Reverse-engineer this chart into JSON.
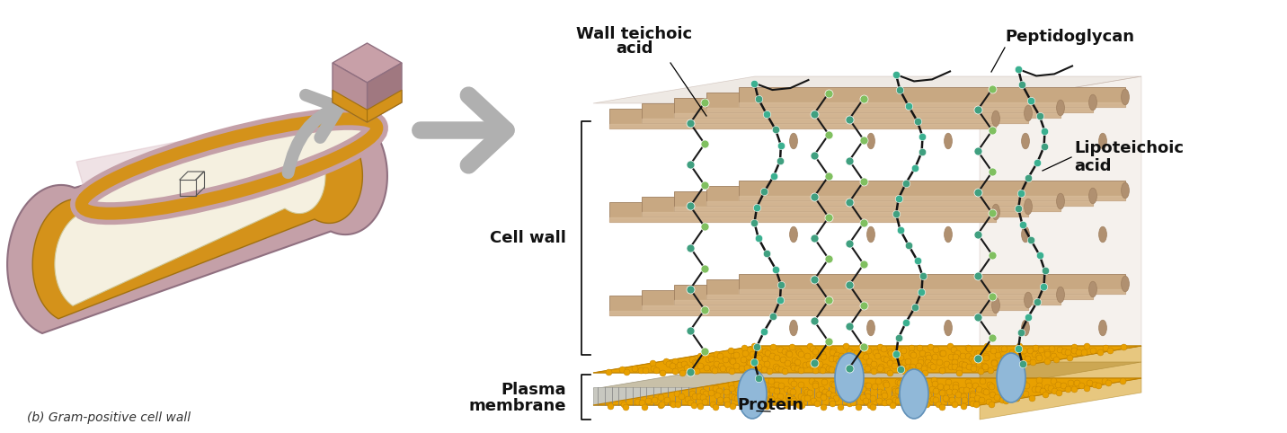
{
  "background_color": "#ffffff",
  "figsize": [
    14.32,
    4.82
  ],
  "dpi": 100,
  "colors": {
    "bacterium_outer": "#c4a0a8",
    "bacterium_wall": "#d4921a",
    "bacterium_inner": "#f5f0e0",
    "cube_top": "#c8a0a8",
    "cube_left": "#b89098",
    "cube_right": "#a07880",
    "cube_gold": "#d4921a",
    "arrow_gray": "#b0b0b0",
    "rod": "#c8a882",
    "rod_dark": "#a08060",
    "rod_cap": "#b09070",
    "rod_shadow": "#907050",
    "membrane_gold": "#e8a000",
    "membrane_gray": "#c8c0b0",
    "protein_blue": "#90b8d8",
    "bead_green": "#80c060",
    "bead_teal": "#40a080",
    "lipid_line": "#202020",
    "label_line": "#101010"
  },
  "labels": {
    "peptidoglycan": "Peptidoglycan",
    "wall_teichoic_acid_1": "Wall teichoic",
    "wall_teichoic_acid_2": "acid",
    "lipoteichoic_acid_1": "Lipoteichoic",
    "lipoteichoic_acid_2": "acid",
    "cell_wall": "Cell wall",
    "plasma_membrane_1": "Plasma",
    "plasma_membrane_2": "membrane",
    "protein": "Protein",
    "caption": "(b) Gram-positive cell wall"
  }
}
